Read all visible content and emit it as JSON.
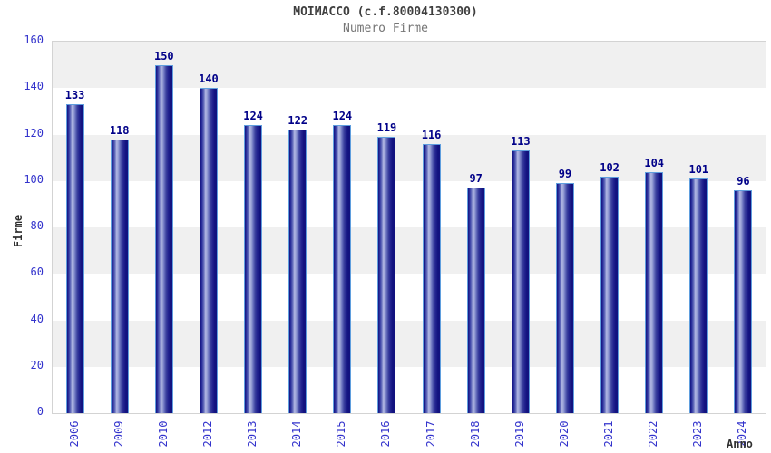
{
  "chart_data": {
    "type": "bar",
    "title": "MOIMACCO (c.f.80004130300)",
    "subtitle": "Numero Firme",
    "xlabel": "Anno",
    "ylabel": "Firme",
    "categories": [
      "2006",
      "2009",
      "2010",
      "2012",
      "2013",
      "2014",
      "2015",
      "2016",
      "2017",
      "2018",
      "2019",
      "2020",
      "2021",
      "2022",
      "2023",
      "2024"
    ],
    "values": [
      133,
      118,
      150,
      140,
      124,
      122,
      124,
      119,
      116,
      97,
      113,
      99,
      102,
      104,
      101,
      96
    ],
    "ylim": [
      0,
      160
    ],
    "ytick_step": 20,
    "yticks": [
      0,
      20,
      40,
      60,
      80,
      100,
      120,
      140,
      160
    ],
    "grid": "alternating horizontal gray/white bands every 20 units",
    "legend": "none",
    "bar_value_labels": true,
    "colors": {
      "background": "#ffffff",
      "title": "#3f3f3f",
      "subtitle": "#757575",
      "tick_label": "#3333cc",
      "value_label": "#000088",
      "axis_title": "#303030",
      "bar_dark": "#12127f",
      "bar_mid": "#6b74bf",
      "bar_light": "#b2b8e4",
      "bar_border": "#5f9ede",
      "band_gray": "#f0f0f0",
      "band_white": "#ffffff",
      "plot_border": "#d3d3d3"
    }
  }
}
